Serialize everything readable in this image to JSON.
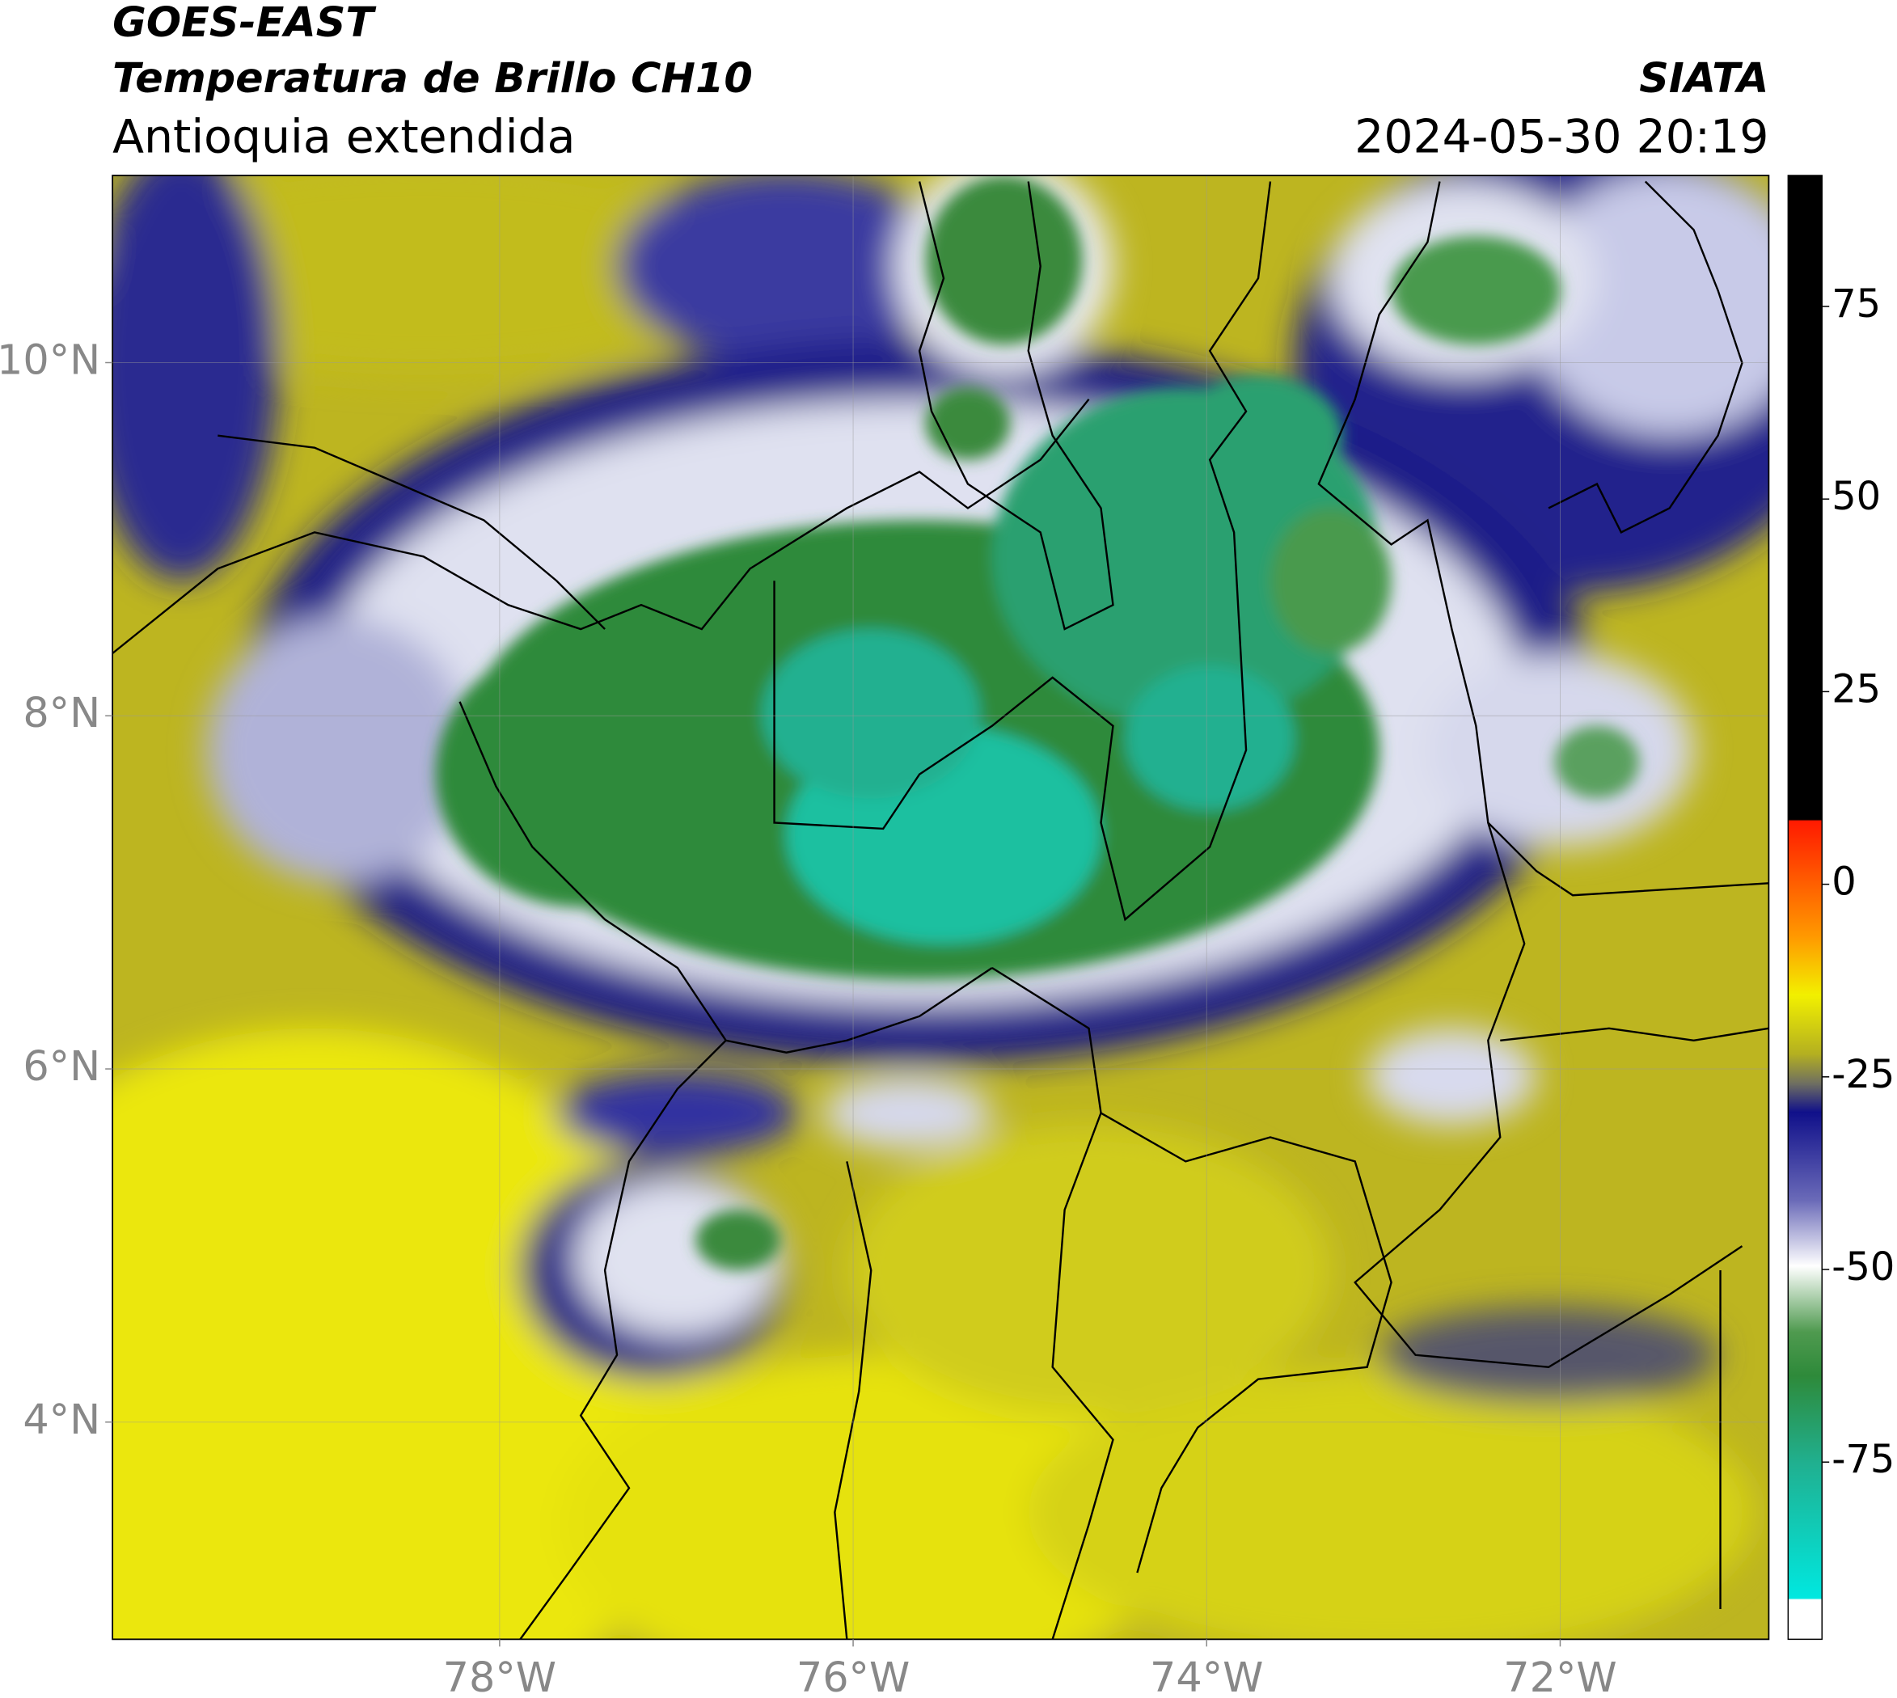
{
  "header": {
    "title_line1": "GOES-EAST",
    "title_line2": "Temperatura de Brillo CH10",
    "subtitle": "Antioquia extendida",
    "source": "SIATA",
    "datetime": "2024-05-30 20:19"
  },
  "map": {
    "lonlim": [
      -80.19,
      -70.82
    ],
    "latlim": [
      2.77,
      11.06
    ],
    "lon_ticks": [
      {
        "value": -78,
        "label": "78°W"
      },
      {
        "value": -76,
        "label": "76°W"
      },
      {
        "value": -74,
        "label": "74°W"
      },
      {
        "value": -72,
        "label": "72°W"
      }
    ],
    "lat_ticks": [
      {
        "value": 10,
        "label": "10°N"
      },
      {
        "value": 8,
        "label": "8°N"
      },
      {
        "value": 6,
        "label": "6°N"
      },
      {
        "value": 4,
        "label": "4°N"
      }
    ],
    "grid": true
  },
  "colorbar": {
    "lim": [
      -98,
      92
    ],
    "ticks": [
      75,
      50,
      25,
      0,
      -25,
      -50,
      -75
    ]
  }
}
